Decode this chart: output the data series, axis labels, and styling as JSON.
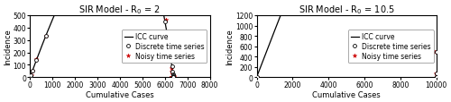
{
  "panel1": {
    "title": "SIR Model - R$_0$ = 2",
    "R0": 2.0,
    "N": 8000,
    "xlabel": "Cumulative Cases",
    "ylabel": "Incidence",
    "xlim": [
      0,
      8000
    ],
    "ylim": [
      0,
      500
    ],
    "xticks": [
      0,
      1000,
      2000,
      3000,
      4000,
      5000,
      6000,
      7000,
      8000
    ],
    "yticks": [
      0,
      100,
      200,
      300,
      400,
      500
    ],
    "dt": 1
  },
  "panel2": {
    "title": "SIR Model - R$_0$ = 10.5",
    "R0": 10.5,
    "N": 10000,
    "xlabel": "Cumulative Cases",
    "ylabel": "Incidence",
    "xlim": [
      0,
      10000
    ],
    "ylim": [
      0,
      1200
    ],
    "xticks": [
      0,
      2000,
      4000,
      6000,
      8000,
      10000
    ],
    "yticks": [
      0,
      200,
      400,
      600,
      800,
      1000,
      1200
    ],
    "dt": 2
  },
  "legend": {
    "circle_label": "Discrete time series",
    "star_label": "Noisy time series",
    "line_label": "ICC curve"
  },
  "circle_color": "#000000",
  "circle_face": "#ffffff",
  "star_color": "#cc0000",
  "line_color": "#000000",
  "background_color": "#ffffff",
  "title_fontsize": 7,
  "label_fontsize": 6,
  "tick_fontsize": 5.5,
  "legend_fontsize": 5.5
}
